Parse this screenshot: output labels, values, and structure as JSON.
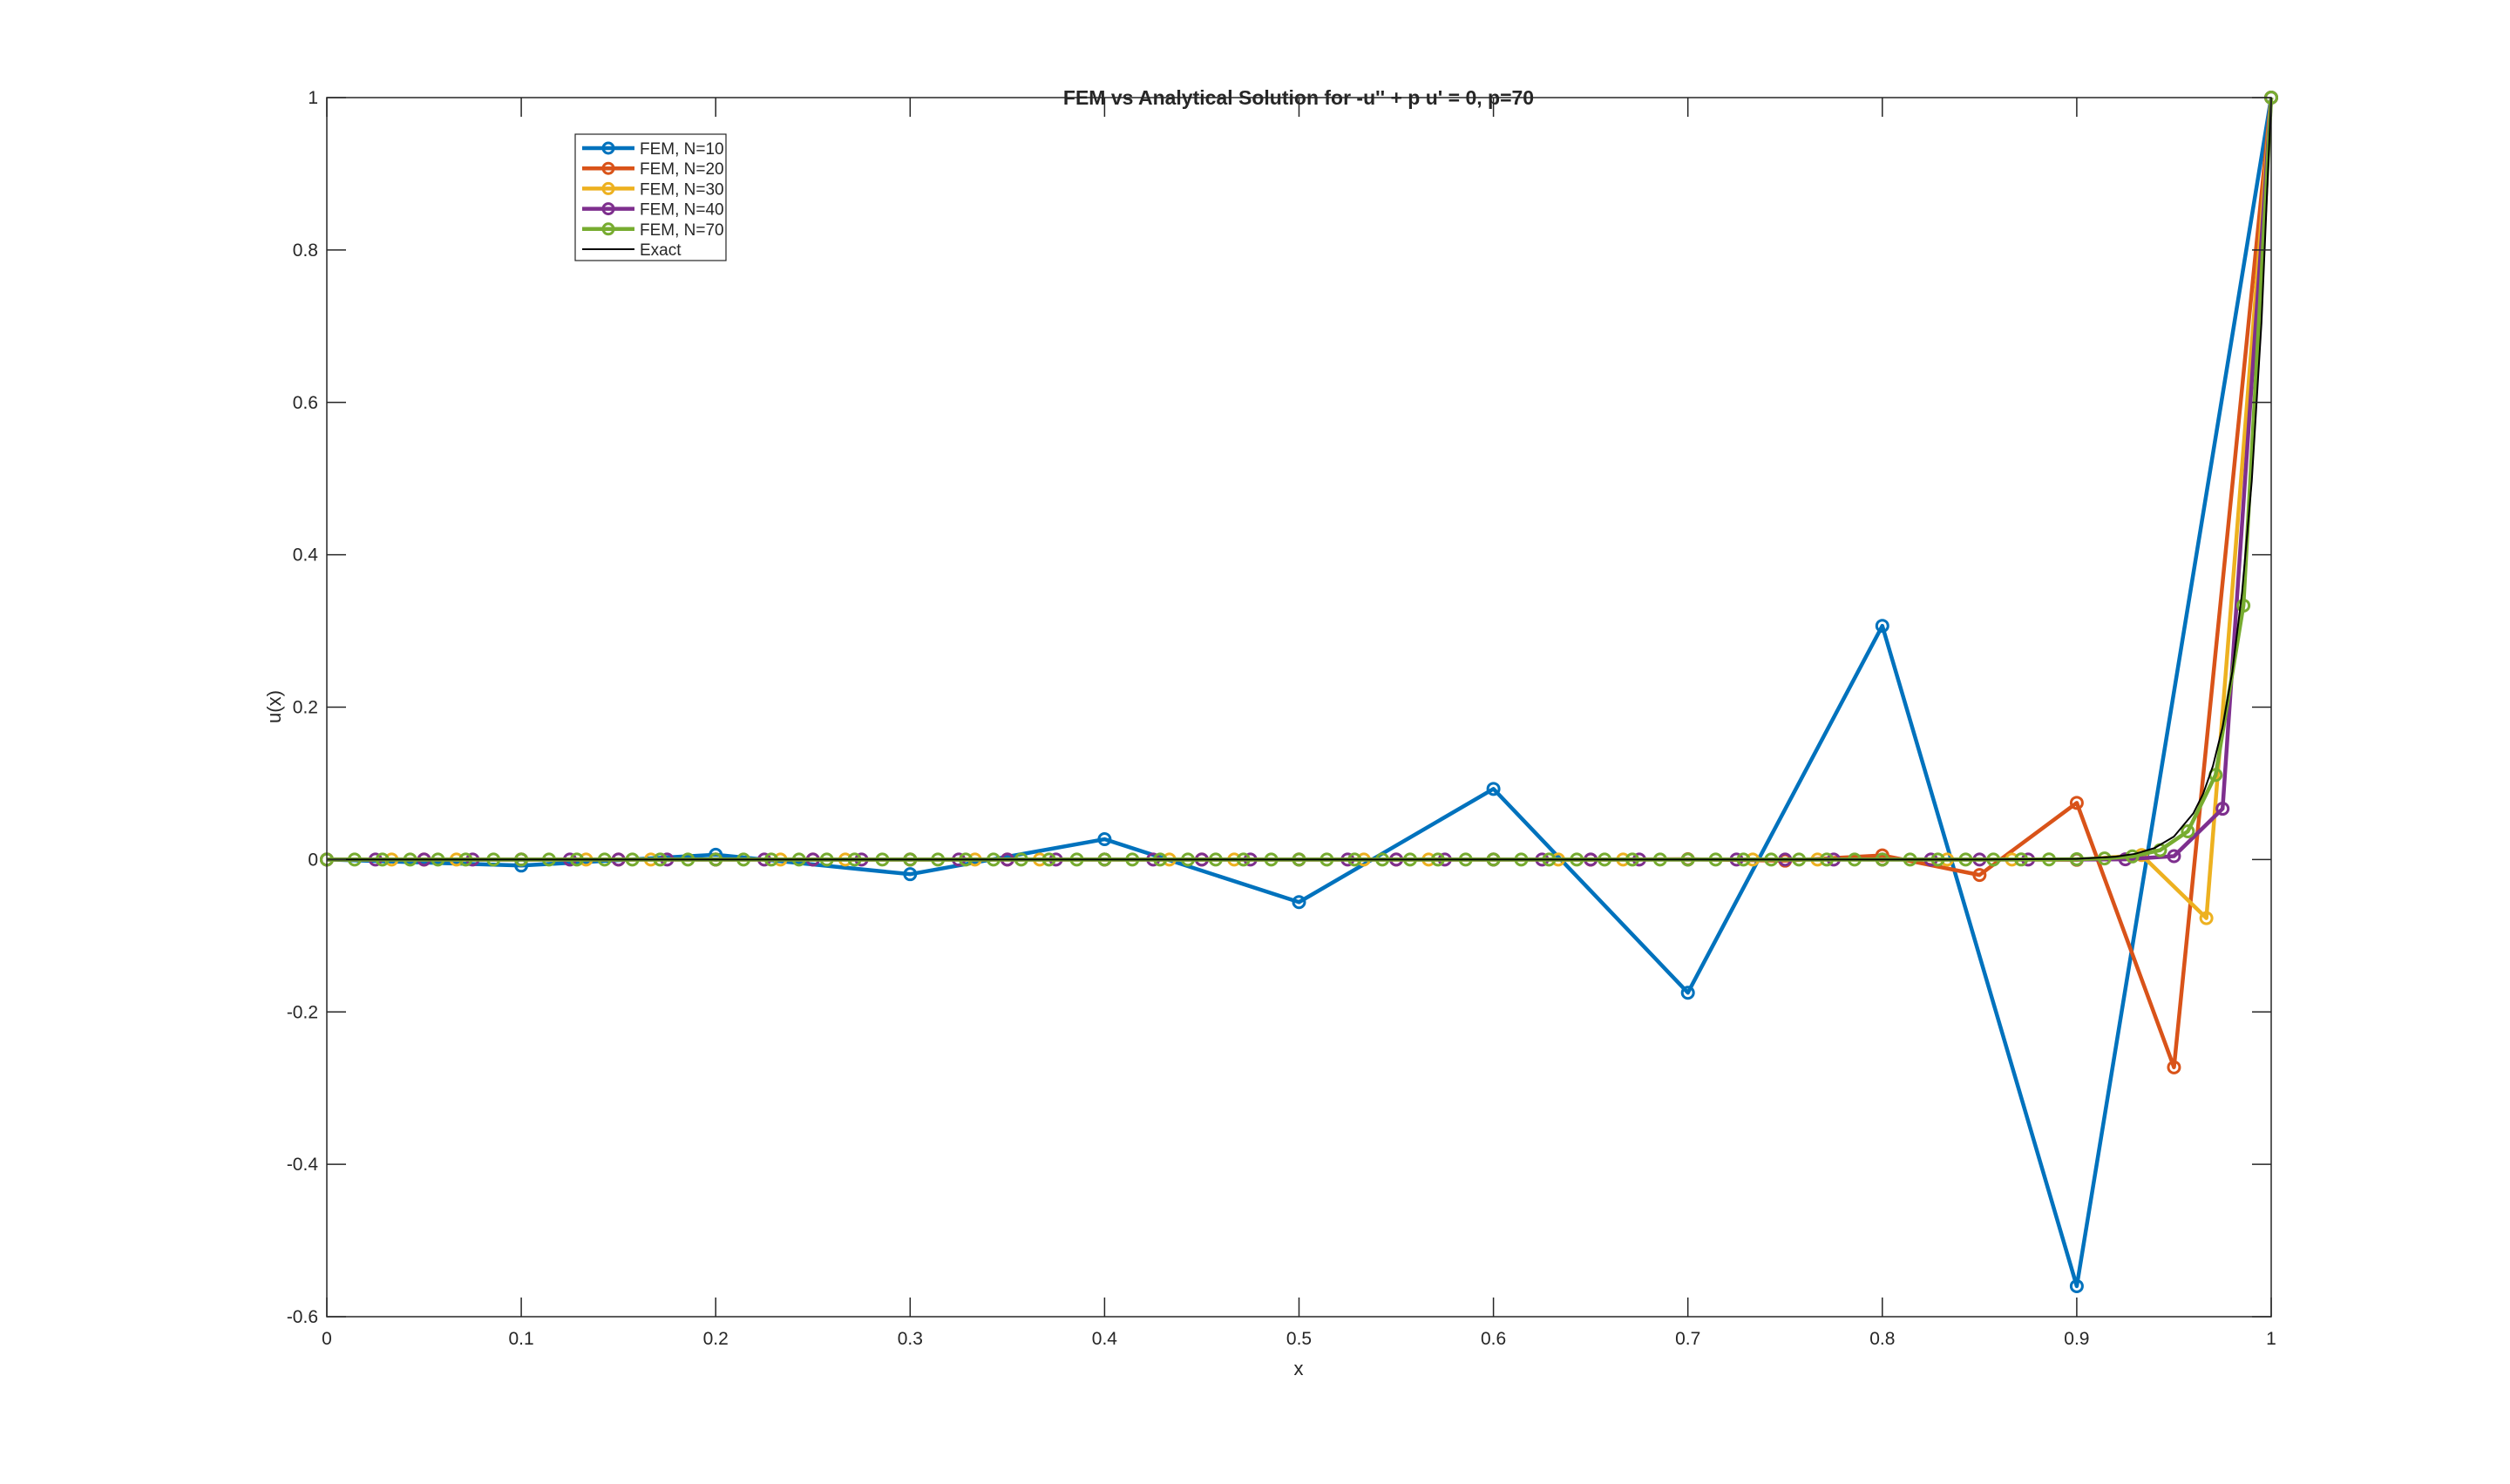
{
  "chart_data": {
    "type": "line",
    "title": "FEM vs Analytical Solution for -u'' + p u' = 0,  p=70",
    "xlabel": "x",
    "ylabel": "u(x)",
    "xlim": [
      0,
      1
    ],
    "ylim": [
      -0.6,
      1
    ],
    "xticks": [
      "0",
      "0.1",
      "0.2",
      "0.3",
      "0.4",
      "0.5",
      "0.6",
      "0.7",
      "0.8",
      "0.9",
      "1"
    ],
    "yticks": [
      "-0.6",
      "-0.4",
      "-0.2",
      "0",
      "0.2",
      "0.4",
      "0.6",
      "0.8",
      "1"
    ],
    "grid": false,
    "legend_placement": "top-left",
    "series": [
      {
        "name": "FEM, N=10",
        "n": 10,
        "color": "#0072BD",
        "marker": "circle",
        "y": [
          0,
          -0.0079,
          0.0063,
          -0.0192,
          0.0267,
          -0.0559,
          0.0927,
          -0.1748,
          0.3067,
          -0.5599,
          1
        ]
      },
      {
        "name": "FEM, N=20",
        "n": 20,
        "color": "#D95319",
        "marker": "circle",
        "y": [
          0,
          0,
          0,
          0,
          0,
          0,
          0,
          0,
          0,
          0,
          0,
          0,
          0,
          -0.0001,
          0.0004,
          -0.0015,
          0.0055,
          -0.0203,
          0.0744,
          -0.2727,
          1
        ]
      },
      {
        "name": "FEM, N=30",
        "n": 30,
        "color": "#EDB120",
        "marker": "circle",
        "y": [
          0,
          0,
          0,
          0,
          0,
          0,
          0,
          0,
          0,
          0,
          0,
          0,
          0,
          0,
          0,
          0,
          0,
          0,
          0,
          0,
          0,
          0,
          0,
          0,
          0,
          0,
          0,
          -0.0005,
          0.0059,
          -0.0769,
          1
        ]
      },
      {
        "name": "FEM, N=40",
        "n": 40,
        "color": "#7E2F8E",
        "marker": "circle",
        "y": [
          0,
          0,
          0,
          0,
          0,
          0,
          0,
          0,
          0,
          0,
          0,
          0,
          0,
          0,
          0,
          0,
          0,
          0,
          0,
          0,
          0,
          0,
          0,
          0,
          0,
          0,
          0,
          0,
          0,
          0,
          0,
          0,
          0,
          0,
          0,
          0,
          0,
          0.0003,
          0.0044,
          0.0667,
          1
        ]
      },
      {
        "name": "FEM, N=70",
        "n": 70,
        "color": "#77AC30",
        "marker": "circle",
        "y": [
          0,
          0,
          0,
          0,
          0,
          0,
          0,
          0,
          0,
          0,
          0,
          0,
          0,
          0,
          0,
          0,
          0,
          0,
          0,
          0,
          0,
          0,
          0,
          0,
          0,
          0,
          0,
          0,
          0,
          0,
          0,
          0,
          0,
          0,
          0,
          0,
          0,
          0,
          0,
          0,
          0,
          0,
          0,
          0,
          0,
          0,
          0,
          0,
          0,
          0,
          0,
          0,
          0,
          0,
          0,
          0,
          0,
          0,
          0,
          0,
          0,
          0.0001,
          0.0002,
          0.0005,
          0.0014,
          0.0041,
          0.0123,
          0.037,
          0.1111,
          0.3333,
          1
        ]
      },
      {
        "name": "Exact",
        "color": "#000000",
        "marker": "none",
        "x": [
          0,
          0.85,
          0.9,
          0.92,
          0.93,
          0.94,
          0.95,
          0.96,
          0.965,
          0.97,
          0.975,
          0.98,
          0.985,
          0.99,
          0.995,
          1
        ],
        "y": [
          0,
          3e-05,
          0.0009,
          0.0037,
          0.0075,
          0.015,
          0.0302,
          0.0608,
          0.0863,
          0.1225,
          0.1738,
          0.2466,
          0.3499,
          0.4966,
          0.7047,
          1
        ]
      }
    ]
  }
}
